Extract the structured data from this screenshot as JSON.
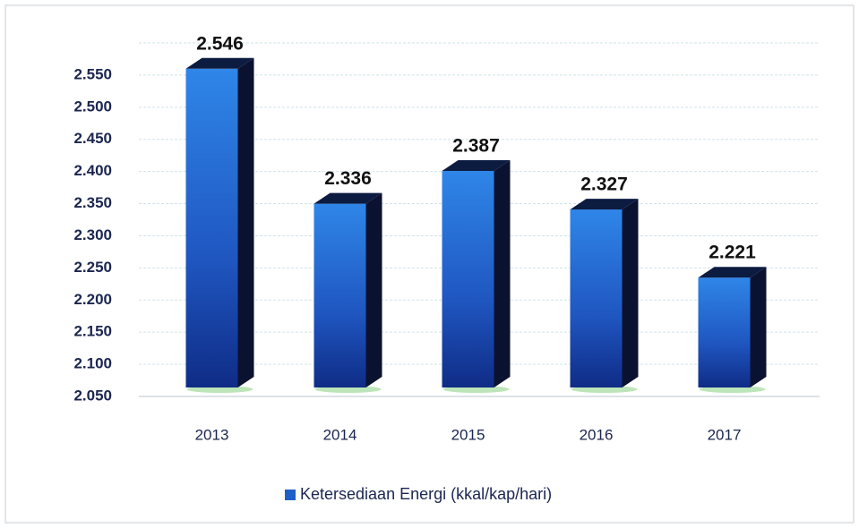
{
  "chart_data": {
    "type": "bar",
    "categories": [
      "2013",
      "2014",
      "2015",
      "2016",
      "2017"
    ],
    "series": [
      {
        "name": "Ketersediaan Energi (kkal/kap/hari)",
        "color": "#1f5fc8",
        "values": [
          2546,
          2336,
          2387,
          2327,
          2221
        ],
        "value_labels": [
          "2.546",
          "2.336",
          "2.387",
          "2.327",
          "2.221"
        ]
      }
    ],
    "ylim": [
      2050,
      2600
    ],
    "yticks": [
      {
        "value": 2050,
        "label": "2.050"
      },
      {
        "value": 2100,
        "label": "2.100"
      },
      {
        "value": 2150,
        "label": "2.150"
      },
      {
        "value": 2200,
        "label": "2.200"
      },
      {
        "value": 2250,
        "label": "2.250"
      },
      {
        "value": 2300,
        "label": "2.300"
      },
      {
        "value": 2350,
        "label": "2.350"
      },
      {
        "value": 2400,
        "label": "2.400"
      },
      {
        "value": 2450,
        "label": "2.450"
      },
      {
        "value": 2500,
        "label": "2.500"
      },
      {
        "value": 2550,
        "label": "2.550"
      }
    ],
    "grid": true,
    "legend": "bottom"
  }
}
